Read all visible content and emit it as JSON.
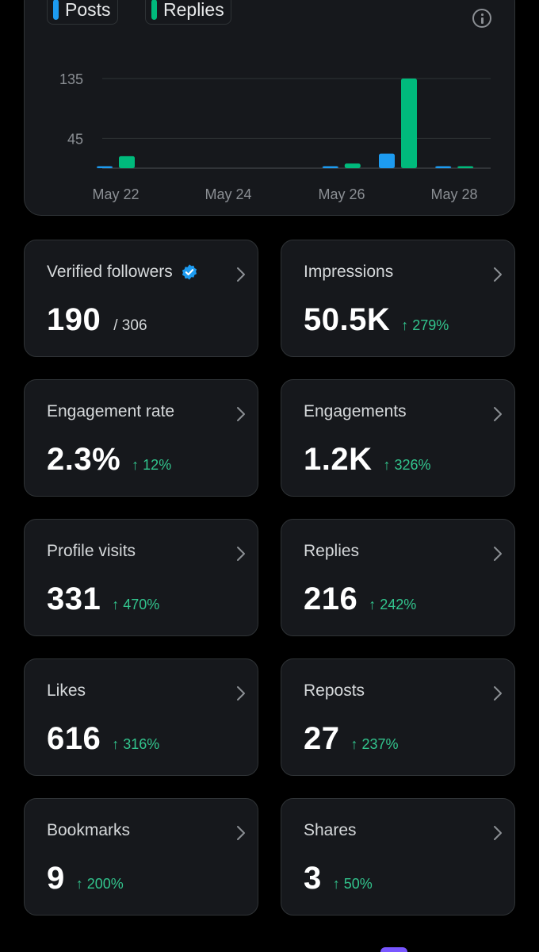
{
  "legend": {
    "posts_label": "Posts",
    "replies_label": "Replies",
    "posts_color": "#1d9bf0",
    "replies_color": "#00ba7c"
  },
  "chart_data": {
    "type": "bar",
    "y_ticks": [
      "135",
      "45"
    ],
    "x_ticks": [
      "May 22",
      "May 24",
      "May 26",
      "May 28"
    ],
    "categories": [
      "May 22",
      "May 23",
      "May 24",
      "May 25",
      "May 26",
      "May 27",
      "May 28"
    ],
    "series": [
      {
        "name": "Posts",
        "color": "#1d9bf0",
        "values": [
          3,
          0,
          0,
          0,
          3,
          22,
          1
        ]
      },
      {
        "name": "Replies",
        "color": "#00ba7c",
        "values": [
          18,
          0,
          0,
          0,
          7,
          135,
          1
        ]
      }
    ],
    "ylim": [
      0,
      140
    ]
  },
  "stats": [
    {
      "id": "verified-followers",
      "title": "Verified followers",
      "value": "190",
      "sub": "/ 306",
      "change": "",
      "verified": true
    },
    {
      "id": "impressions",
      "title": "Impressions",
      "value": "50.5K",
      "sub": "",
      "change": "↑ 279%"
    },
    {
      "id": "engagement-rate",
      "title": "Engagement rate",
      "value": "2.3%",
      "sub": "",
      "change": "↑ 12%"
    },
    {
      "id": "engagements",
      "title": "Engagements",
      "value": "1.2K",
      "sub": "",
      "change": "↑ 326%"
    },
    {
      "id": "profile-visits",
      "title": "Profile visits",
      "value": "331",
      "sub": "",
      "change": "↑ 470%"
    },
    {
      "id": "replies",
      "title": "Replies",
      "value": "216",
      "sub": "",
      "change": "↑ 242%"
    },
    {
      "id": "likes",
      "title": "Likes",
      "value": "616",
      "sub": "",
      "change": "↑ 316%"
    },
    {
      "id": "reposts",
      "title": "Reposts",
      "value": "27",
      "sub": "",
      "change": "↑ 237%"
    },
    {
      "id": "bookmarks",
      "title": "Bookmarks",
      "value": "9",
      "sub": "",
      "change": "↑ 200%"
    },
    {
      "id": "shares",
      "title": "Shares",
      "value": "3",
      "sub": "",
      "change": "↑ 50%"
    }
  ]
}
